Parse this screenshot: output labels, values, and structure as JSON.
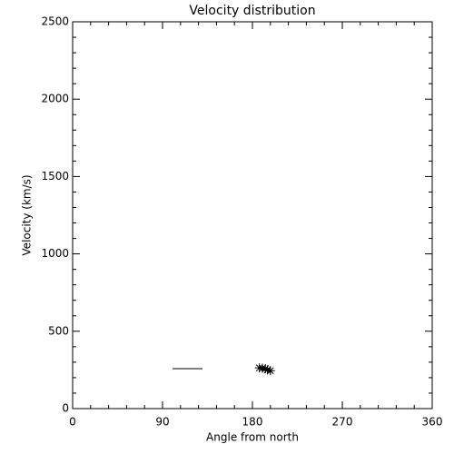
{
  "chart_data": {
    "type": "scatter",
    "title": "Velocity distribution",
    "x_label": "Angle from north",
    "y_label": "Velocity (km/s)",
    "series": [
      {
        "style": "asterisk",
        "color": "#000000",
        "x": [
          187,
          190,
          193,
          195,
          198
        ],
        "values": [
          263,
          261,
          258,
          250,
          245
        ]
      },
      {
        "style": "line",
        "color": "#000000",
        "x": [
          100,
          130
        ],
        "values": [
          258,
          258
        ]
      }
    ],
    "xlim": [
      0,
      360
    ],
    "xticks": [
      0,
      90,
      180,
      270,
      360
    ],
    "ylim": [
      0,
      2500
    ],
    "yticks": [
      0,
      500,
      1000,
      1500,
      2000,
      2500
    ],
    "minor_ticks": 5,
    "grid": false
  }
}
